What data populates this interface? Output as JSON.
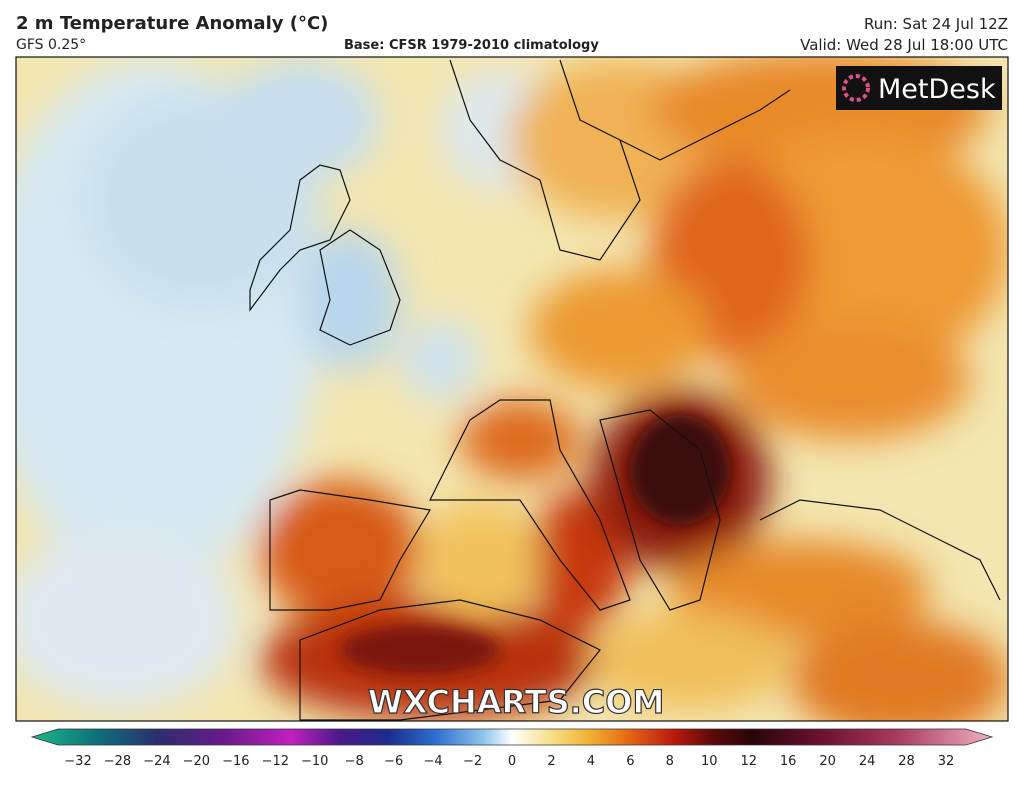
{
  "header": {
    "title": "2 m Temperature Anomaly (°C)",
    "model": "GFS 0.25°",
    "base": "Base: CFSR 1979-2010 climatology",
    "run": "Run: Sat 24 Jul 12Z",
    "valid": "Valid: Wed 28 Jul 18:00 UTC"
  },
  "map": {
    "logo": "MetDesk",
    "watermark": "WXCHARTS.COM"
  },
  "colorbar": {
    "ticks": [
      "−32",
      "−28",
      "−24",
      "−20",
      "−16",
      "−12",
      "−10",
      "−8",
      "−6",
      "−4",
      "−2",
      "0",
      "2",
      "4",
      "6",
      "8",
      "10",
      "12",
      "16",
      "20",
      "24",
      "28",
      "32"
    ]
  }
}
